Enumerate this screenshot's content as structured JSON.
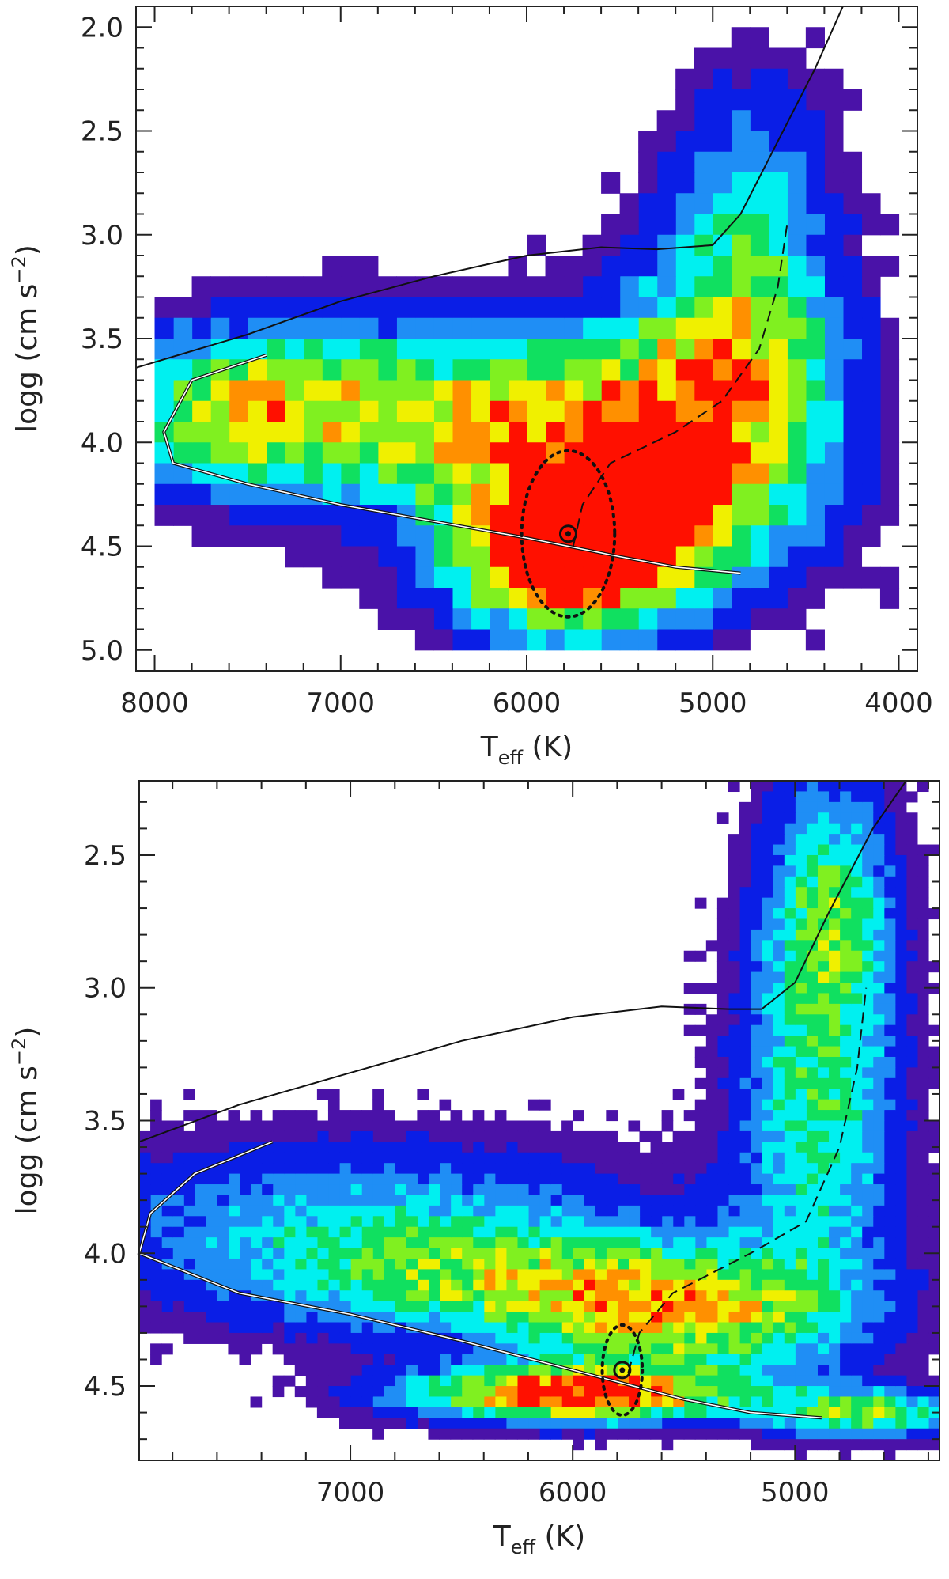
{
  "chart_data": [
    {
      "type": "heatmap",
      "title": "",
      "xlabel": "T",
      "xlabel_sub": "eff",
      "xlabel_unit": " (K)",
      "ylabel": "logg (cm s",
      "ylabel_sup": "−2",
      "ylabel_end": ")",
      "xlim": [
        8100,
        3900
      ],
      "ylim": [
        1.9,
        5.1
      ],
      "x_ticks": [
        8000,
        7000,
        6000,
        5000,
        4000
      ],
      "x_tick_labels": [
        "8000",
        "7000",
        "6000",
        "5000",
        "4000"
      ],
      "y_ticks": [
        2.0,
        2.5,
        3.0,
        3.5,
        4.0,
        4.5,
        5.0
      ],
      "y_tick_labels": [
        "2.0",
        "2.5",
        "3.0",
        "3.5",
        "4.0",
        "4.5",
        "5.0"
      ],
      "grid": false,
      "colormap": [
        "#4a12a8",
        "#0a1ee6",
        "#1f8ef5",
        "#00f0f0",
        "#10e060",
        "#80f020",
        "#f0f000",
        "#ff9000",
        "#ff1000"
      ],
      "density_blobs": [
        {
          "x": 5780,
          "y": 4.55,
          "sx": 420,
          "sy": 0.25,
          "w": 1.0
        },
        {
          "x": 5400,
          "y": 4.2,
          "sx": 600,
          "sy": 0.35,
          "w": 0.75
        },
        {
          "x": 6500,
          "y": 3.85,
          "sx": 900,
          "sy": 0.3,
          "w": 0.6
        },
        {
          "x": 7600,
          "y": 3.85,
          "sx": 500,
          "sy": 0.25,
          "w": 0.45
        },
        {
          "x": 4900,
          "y": 3.6,
          "sx": 400,
          "sy": 0.4,
          "w": 0.55
        },
        {
          "x": 4800,
          "y": 2.9,
          "sx": 300,
          "sy": 0.5,
          "w": 0.3
        }
      ],
      "grid_x": [
        4000,
        8000,
        40
      ],
      "grid_y": [
        2.0,
        5.0,
        30
      ],
      "threshold": 0.06,
      "track_black": [
        [
          8100,
          3.64
        ],
        [
          7500,
          3.48
        ],
        [
          7000,
          3.32
        ],
        [
          6500,
          3.2
        ],
        [
          6000,
          3.1
        ],
        [
          5600,
          3.06
        ],
        [
          5300,
          3.07
        ],
        [
          5000,
          3.05
        ],
        [
          4850,
          2.9
        ],
        [
          4650,
          2.55
        ],
        [
          4450,
          2.2
        ],
        [
          4300,
          1.9
        ]
      ],
      "track_white": [
        [
          7400,
          3.58
        ],
        [
          7800,
          3.7
        ],
        [
          7950,
          3.95
        ],
        [
          7900,
          4.1
        ],
        [
          7500,
          4.2
        ],
        [
          7000,
          4.3
        ],
        [
          6500,
          4.38
        ],
        [
          6000,
          4.46
        ],
        [
          5500,
          4.55
        ],
        [
          5200,
          4.6
        ],
        [
          4850,
          4.63
        ]
      ],
      "track_dashed": [
        [
          5750,
          4.5
        ],
        [
          5700,
          4.3
        ],
        [
          5550,
          4.1
        ],
        [
          5200,
          3.95
        ],
        [
          4950,
          3.8
        ],
        [
          4750,
          3.55
        ],
        [
          4650,
          3.25
        ],
        [
          4600,
          2.95
        ]
      ],
      "sun": {
        "x": 5777,
        "y": 4.44
      },
      "sun_circle": {
        "sx": 500,
        "sy": 0.4
      }
    },
    {
      "type": "heatmap",
      "title": "",
      "xlabel": "T",
      "xlabel_sub": "eff",
      "xlabel_unit": " (K)",
      "ylabel": "logg (cm s",
      "ylabel_sup": "−2",
      "ylabel_end": ")",
      "xlim": [
        7950,
        4350
      ],
      "ylim": [
        2.22,
        4.78
      ],
      "x_ticks": [
        7000,
        6000,
        5000
      ],
      "x_tick_labels": [
        "7000",
        "6000",
        "5000"
      ],
      "y_ticks": [
        2.5,
        3.0,
        3.5,
        4.0,
        4.5
      ],
      "y_tick_labels": [
        "2.5",
        "3.0",
        "3.5",
        "4.0",
        "4.5"
      ],
      "grid": false,
      "colormap": [
        "#4a12a8",
        "#0a1ee6",
        "#1f8ef5",
        "#00f0f0",
        "#10e060",
        "#80f020",
        "#f0f000",
        "#ff9000",
        "#ff1000"
      ],
      "density_blobs": [
        {
          "x": 6000,
          "y": 4.53,
          "sx": 500,
          "sy": 0.07,
          "w": 1.0
        },
        {
          "x": 5500,
          "y": 4.25,
          "sx": 500,
          "sy": 0.15,
          "w": 0.6
        },
        {
          "x": 6300,
          "y": 4.1,
          "sx": 800,
          "sy": 0.15,
          "w": 0.5
        },
        {
          "x": 4900,
          "y": 3.5,
          "sx": 250,
          "sy": 0.45,
          "w": 0.45
        },
        {
          "x": 4850,
          "y": 2.7,
          "sx": 200,
          "sy": 0.35,
          "w": 0.5
        },
        {
          "x": 4700,
          "y": 4.6,
          "sx": 300,
          "sy": 0.06,
          "w": 0.6
        },
        {
          "x": 7000,
          "y": 3.85,
          "sx": 900,
          "sy": 0.2,
          "w": 0.3
        }
      ],
      "grid_x": [
        4350,
        7950,
        72
      ],
      "grid_y": [
        2.22,
        4.78,
        64
      ],
      "threshold": 0.05,
      "track_black": [
        [
          7950,
          3.58
        ],
        [
          7500,
          3.44
        ],
        [
          7000,
          3.32
        ],
        [
          6500,
          3.2
        ],
        [
          6000,
          3.11
        ],
        [
          5600,
          3.07
        ],
        [
          5300,
          3.08
        ],
        [
          5150,
          3.08
        ],
        [
          5000,
          2.98
        ],
        [
          4850,
          2.72
        ],
        [
          4650,
          2.4
        ],
        [
          4500,
          2.22
        ]
      ],
      "track_white": [
        [
          7350,
          3.58
        ],
        [
          7700,
          3.7
        ],
        [
          7900,
          3.85
        ],
        [
          7950,
          4.0
        ],
        [
          7500,
          4.15
        ],
        [
          7000,
          4.23
        ],
        [
          6500,
          4.33
        ],
        [
          6000,
          4.44
        ],
        [
          5500,
          4.55
        ],
        [
          5200,
          4.6
        ],
        [
          4880,
          4.62
        ]
      ],
      "track_dashed": [
        [
          5750,
          4.45
        ],
        [
          5700,
          4.3
        ],
        [
          5550,
          4.15
        ],
        [
          5200,
          4.0
        ],
        [
          4950,
          3.88
        ],
        [
          4800,
          3.6
        ],
        [
          4720,
          3.3
        ],
        [
          4680,
          3.0
        ]
      ],
      "sun": {
        "x": 5777,
        "y": 4.44
      },
      "sun_circle": {
        "sx": 180,
        "sy": 0.17
      }
    }
  ]
}
